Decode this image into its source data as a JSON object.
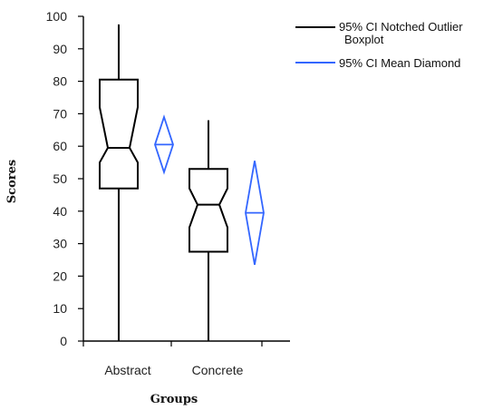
{
  "chart_data": {
    "type": "boxplot",
    "xlabel": "Groups",
    "ylabel": "Scores",
    "ylim": [
      0,
      100
    ],
    "yticks": [
      0,
      10,
      20,
      30,
      40,
      50,
      60,
      70,
      80,
      90,
      100
    ],
    "categories": [
      "Abstract",
      "Concrete"
    ],
    "boxplot": [
      {
        "category": "Abstract",
        "min": 0,
        "q1": 47,
        "median": 59.5,
        "q3": 80.5,
        "max": 97.5,
        "notch_low": 55,
        "notch_high": 72
      },
      {
        "category": "Concrete",
        "min": 0,
        "q1": 27.5,
        "median": 42,
        "q3": 53,
        "max": 68,
        "notch_low": 35,
        "notch_high": 47
      }
    ],
    "mean_diamond": [
      {
        "category": "Abstract",
        "mean": 60.5,
        "ci_low": 52,
        "ci_high": 69
      },
      {
        "category": "Concrete",
        "mean": 39.5,
        "ci_low": 23.5,
        "ci_high": 55.5
      }
    ],
    "legend": {
      "placement": "top-right",
      "items": [
        {
          "label_lines": [
            "95% CI Notched Outlier",
            "Boxplot"
          ],
          "color": "#000000"
        },
        {
          "label_lines": [
            "95% CI Mean Diamond"
          ],
          "color": "#3366ff"
        }
      ]
    }
  }
}
